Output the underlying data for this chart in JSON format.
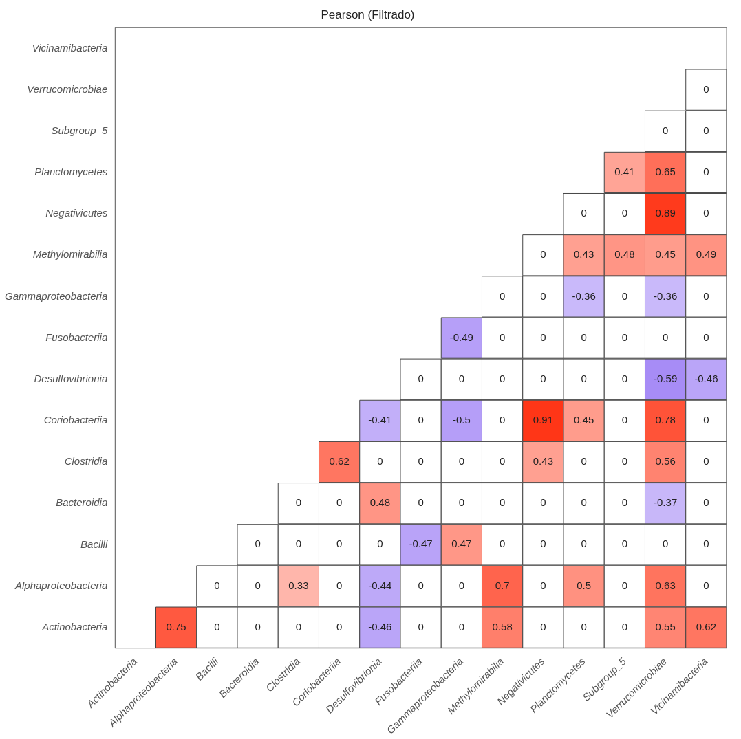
{
  "chart_data": {
    "type": "heatmap",
    "title": "Pearson (Filtrado)",
    "categories": [
      "Actinobacteria",
      "Alphaproteobacteria",
      "Bacilli",
      "Bacteroidia",
      "Clostridia",
      "Coriobacteriia",
      "Desulfovibrionia",
      "Fusobacteriia",
      "Gammaproteobacteria",
      "Methylomirabilia",
      "Negativicutes",
      "Planctomycetes",
      "Subgroup_5",
      "Verrucomicrobiae",
      "Vicinamibacteria"
    ],
    "y_categories": [
      "Vicinamibacteria",
      "Verrucomicrobiae",
      "Subgroup_5",
      "Planctomycetes",
      "Negativicutes",
      "Methylomirabilia",
      "Gammaproteobacteria",
      "Fusobacteriia",
      "Desulfovibrionia",
      "Coriobacteriia",
      "Clostridia",
      "Bacteroidia",
      "Bacilli",
      "Alphaproteobacteria",
      "Actinobacteria"
    ],
    "cells": [
      [
        null,
        null,
        null,
        null,
        null,
        null,
        null,
        null,
        null,
        null,
        null,
        null,
        null,
        null,
        null
      ],
      [
        null,
        null,
        null,
        null,
        null,
        null,
        null,
        null,
        null,
        null,
        null,
        null,
        null,
        null,
        0
      ],
      [
        null,
        null,
        null,
        null,
        null,
        null,
        null,
        null,
        null,
        null,
        null,
        null,
        null,
        0,
        0
      ],
      [
        null,
        null,
        null,
        null,
        null,
        null,
        null,
        null,
        null,
        null,
        null,
        null,
        0.41,
        0.65,
        0
      ],
      [
        null,
        null,
        null,
        null,
        null,
        null,
        null,
        null,
        null,
        null,
        null,
        0,
        0,
        0.89,
        0
      ],
      [
        null,
        null,
        null,
        null,
        null,
        null,
        null,
        null,
        null,
        null,
        0,
        0.43,
        0.48,
        0.45,
        0.49
      ],
      [
        null,
        null,
        null,
        null,
        null,
        null,
        null,
        null,
        null,
        0,
        0,
        -0.36,
        0,
        -0.36,
        0
      ],
      [
        null,
        null,
        null,
        null,
        null,
        null,
        null,
        null,
        -0.49,
        0,
        0,
        0,
        0,
        0,
        0
      ],
      [
        null,
        null,
        null,
        null,
        null,
        null,
        null,
        0,
        0,
        0,
        0,
        0,
        0,
        -0.59,
        -0.46
      ],
      [
        null,
        null,
        null,
        null,
        null,
        null,
        -0.41,
        0,
        -0.5,
        0,
        0.91,
        0.45,
        0,
        0.78,
        0
      ],
      [
        null,
        null,
        null,
        null,
        null,
        0.62,
        0,
        0,
        0,
        0,
        0.43,
        0,
        0,
        0.56,
        0
      ],
      [
        null,
        null,
        null,
        null,
        0,
        0,
        0.48,
        0,
        0,
        0,
        0,
        0,
        0,
        -0.37,
        0
      ],
      [
        null,
        null,
        null,
        0,
        0,
        0,
        0,
        -0.47,
        0.47,
        0,
        0,
        0,
        0,
        0,
        0
      ],
      [
        null,
        null,
        0,
        0,
        0.33,
        0,
        -0.44,
        0,
        0,
        0.7,
        0,
        0.5,
        0,
        0.63,
        0
      ],
      [
        null,
        0.75,
        0,
        0,
        0,
        0,
        -0.46,
        0,
        0,
        0.58,
        0,
        0,
        0,
        0.55,
        0.62
      ]
    ],
    "data_labels": true,
    "grid": false,
    "legend": false
  }
}
